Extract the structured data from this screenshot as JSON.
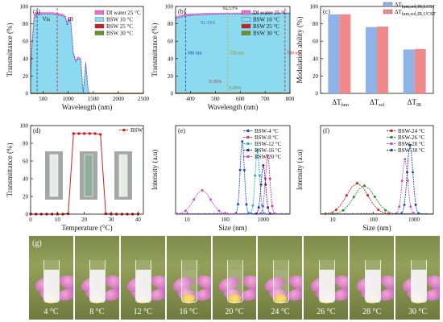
{
  "chart_data": [
    {
      "panel": "(a)",
      "type": "line",
      "xlabel": "Wavelength (nm)",
      "ylabel": "Transmittance (%)",
      "xlim": [
        250,
        2500
      ],
      "ylim": [
        0,
        100
      ],
      "xticks": [
        500,
        1000,
        1500,
        2000,
        2500
      ],
      "yticks": [
        0,
        20,
        40,
        60,
        80,
        100
      ],
      "region_labels": [
        "Vis",
        "IR"
      ],
      "vlines": [
        380,
        780
      ],
      "series": [
        {
          "name": "DI water 25 °C",
          "color": "#e96fd8",
          "x": [
            250,
            280,
            320,
            380,
            500,
            700,
            900,
            950,
            980,
            1000,
            1050,
            1100,
            1150,
            1200,
            1250,
            1300,
            1350,
            1400,
            1450,
            1500,
            2500
          ],
          "y": [
            20,
            60,
            90,
            93,
            93,
            93,
            91,
            88,
            80,
            86,
            84,
            48,
            38,
            42,
            40,
            0,
            36,
            2,
            0,
            0,
            0
          ]
        },
        {
          "name": "BSW 10 °C",
          "color": "#86dff0",
          "x": [
            250,
            280,
            320,
            380,
            500,
            700,
            900,
            950,
            980,
            1000,
            1050,
            1100,
            1150,
            1200,
            1250,
            1300,
            1350,
            1400,
            1450,
            1500,
            2500
          ],
          "y": [
            18,
            55,
            86,
            90,
            91,
            91,
            89,
            86,
            78,
            84,
            82,
            46,
            36,
            40,
            38,
            0,
            34,
            2,
            0,
            0,
            0
          ]
        },
        {
          "name": "BSW 25 °C",
          "color": "#c81e1e",
          "x": [
            250,
            500,
            1000,
            1500,
            2500
          ],
          "y": [
            0,
            0,
            0,
            0,
            0
          ]
        },
        {
          "name": "BSW 30 °C",
          "color": "#6f8f2a",
          "x": [
            250,
            500,
            1000,
            1500,
            2500
          ],
          "y": [
            0,
            0,
            0,
            0,
            0
          ]
        }
      ],
      "legend": [
        "DI water 25 °C",
        "BSW 10 °C",
        "BSW 25 °C",
        "BSW 30 °C"
      ],
      "legend_placement": "top-right"
    },
    {
      "panel": "(b)",
      "type": "line",
      "xlabel": "Wavelength (nm)",
      "ylabel": "Transmittance (%)",
      "xlim": [
        340,
        800
      ],
      "ylim": [
        0,
        100
      ],
      "xticks": [
        400,
        500,
        600,
        700,
        800
      ],
      "yticks": [
        0,
        20,
        40,
        60,
        80,
        100
      ],
      "vlines": [
        380,
        550,
        780
      ],
      "vline_labels": [
        "380 nm",
        "550 nm",
        "780 nm"
      ],
      "annotations": [
        "92.53%",
        "91.33%",
        "0.35%",
        "0.09%"
      ],
      "series": [
        {
          "name": "DI water 25 °C",
          "color": "#e96fd8",
          "x": [
            340,
            380,
            450,
            550,
            650,
            780,
            800
          ],
          "y": [
            88,
            91,
            92,
            92.53,
            92.5,
            92.6,
            92.6
          ]
        },
        {
          "name": "BSW 10 °C",
          "color": "#86dff0",
          "x": [
            340,
            380,
            450,
            550,
            650,
            780,
            800
          ],
          "y": [
            86,
            89,
            90.5,
            91.33,
            91.5,
            91.8,
            91.8
          ]
        },
        {
          "name": "BSW 25 °C",
          "color": "#c81e1e",
          "x": [
            340,
            550,
            800
          ],
          "y": [
            0.35,
            0.35,
            0.35
          ]
        },
        {
          "name": "BSW 30 °C",
          "color": "#6f8f2a",
          "x": [
            340,
            550,
            800
          ],
          "y": [
            0.09,
            0.09,
            0.09
          ]
        }
      ],
      "legend": [
        "DI water 25 °C",
        "BSW 10 °C",
        "BSW 25 °C",
        "BSW 30 °C"
      ],
      "legend_placement": "top-right"
    },
    {
      "panel": "(c)",
      "type": "bar",
      "ylabel": "Modulation ability (%)",
      "ylim": [
        0,
        100
      ],
      "yticks": [
        0,
        20,
        40,
        60,
        80,
        100
      ],
      "categories": [
        "ΔT_lum",
        "ΔT_sol",
        "ΔT_IR"
      ],
      "category_parts": [
        [
          "ΔT",
          "lum"
        ],
        [
          "ΔT",
          "sol"
        ],
        [
          "ΔT",
          "IR"
        ]
      ],
      "series": [
        {
          "name": "ΔT lum,sol,IR,LCST",
          "color": "#8fb3e6",
          "values": [
            90.9,
            76.3,
            50.5
          ]
        },
        {
          "name": "ΔT lum,sol,IR,UCST",
          "color": "#f08a8a",
          "values": [
            91.0,
            76.8,
            51.0
          ]
        }
      ],
      "legend_parts": [
        [
          "ΔT",
          "lum,sol,IR,LCST"
        ],
        [
          "ΔT",
          "lum,sol,IR,UCST"
        ]
      ],
      "legend_placement": "top-right"
    },
    {
      "panel": "(d)",
      "type": "line",
      "xlabel": "Temperature (°C)",
      "ylabel": "Transmittance (%)",
      "xlim": [
        0,
        42
      ],
      "ylim": [
        0,
        100
      ],
      "xticks": [
        0,
        10,
        20,
        30,
        40
      ],
      "yticks": [
        0,
        20,
        40,
        60,
        80,
        100
      ],
      "series": [
        {
          "name": "BSW",
          "color": "#d62020",
          "x": [
            0,
            2,
            4,
            6,
            8,
            10,
            12,
            14,
            16,
            18,
            20,
            22,
            24,
            26,
            28,
            30,
            32,
            34,
            36,
            38,
            40
          ],
          "y": [
            0,
            0,
            0,
            0,
            0,
            0,
            0,
            0.5,
            91,
            91,
            91,
            91,
            91,
            90,
            0.5,
            0,
            0,
            0,
            0,
            0,
            0
          ]
        }
      ],
      "legend": [
        "BSW"
      ],
      "legend_placement": "top-right"
    },
    {
      "panel": "(e)",
      "type": "line",
      "xlabel": "Size (nm)",
      "ylabel": "Intensity (a.u)",
      "xscale": "log",
      "xlim": [
        5,
        5000
      ],
      "xticks": [
        10,
        100,
        1000
      ],
      "series": [
        {
          "name": "BSW-4 °C",
          "color": "#1f4fd0",
          "peak_size": 280,
          "peak_height": 0.82,
          "width": 0.055
        },
        {
          "name": "BSW-8 °C",
          "color": "#e0338a",
          "peak_size": 1300,
          "peak_height": 0.66,
          "width": 0.06
        },
        {
          "name": "BSW-12 °C",
          "color": "#2ab0c8",
          "peak_size": 700,
          "peak_height": 0.72,
          "width": 0.06
        },
        {
          "name": "BSW-16 °C",
          "color": "#2b2b9e",
          "peak_size": 1000,
          "peak_height": 0.55,
          "width": 0.06
        },
        {
          "name": "BSW-20 °C",
          "color": "#c256c2",
          "peak_size": 25,
          "peak_height": 0.27,
          "width": 0.22
        }
      ],
      "legend": [
        "BSW-4 °C",
        "BSW-8 °C",
        "BSW-12 °C",
        "BSW-16 °C",
        "BSW-20 °C"
      ],
      "legend_placement": "top-right"
    },
    {
      "panel": "(f)",
      "type": "line",
      "xlabel": "Size (nm)",
      "ylabel": "Intensity (a.u)",
      "xscale": "log",
      "xlim": [
        5,
        3000
      ],
      "xticks": [
        10,
        100,
        1000
      ],
      "series": [
        {
          "name": "BSW-24 °C",
          "color": "#d62020",
          "peak_size": 40,
          "peak_height": 0.35,
          "width": 0.26
        },
        {
          "name": "BSW-26 °C",
          "color": "#2e8b2e",
          "peak_size": 60,
          "peak_height": 0.32,
          "width": 0.26
        },
        {
          "name": "BSW-28 °C",
          "color": "#c256c2",
          "peak_size": 600,
          "peak_height": 0.62,
          "width": 0.07
        },
        {
          "name": "BSW-30 °C",
          "color": "#1f4f8f",
          "peak_size": 800,
          "peak_height": 0.78,
          "width": 0.07
        }
      ],
      "legend": [
        "BSW-24 °C",
        "BSW-26 °C",
        "BSW-28 °C",
        "BSW-30 °C"
      ],
      "legend_placement": "top-right"
    }
  ],
  "photo_panel": {
    "label": "(g)",
    "temperatures": [
      "4 °C",
      "8 °C",
      "12 °C",
      "16 °C",
      "20 °C",
      "24 °C",
      "26 °C",
      "28 °C",
      "30 °C"
    ],
    "liquid_state": [
      "opaque",
      "opaque",
      "opaque",
      "clear",
      "clear",
      "clear",
      "opaque",
      "opaque",
      "opaque"
    ]
  }
}
